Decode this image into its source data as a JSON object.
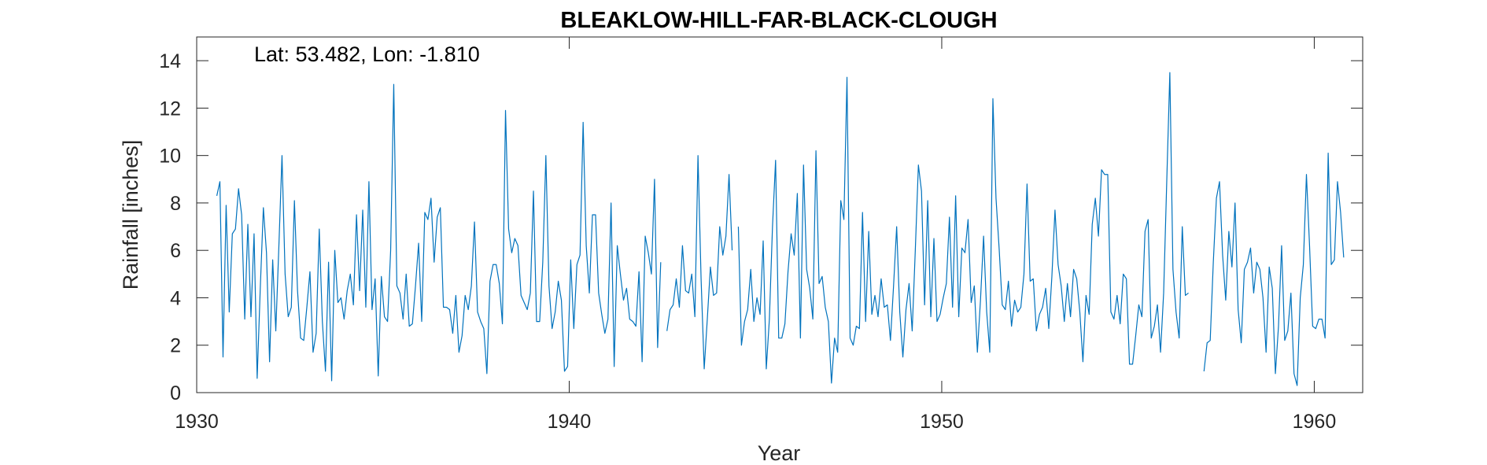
{
  "chart_data": {
    "type": "line",
    "title": "BLEAKLOW-HILL-FAR-BLACK-CLOUGH",
    "annotation": "Lat: 53.482, Lon: -1.810",
    "xlabel": "Year",
    "ylabel": "Rainfall [inches]",
    "xlim": [
      1930,
      1961.3
    ],
    "ylim": [
      0,
      15
    ],
    "xticks": [
      1930,
      1940,
      1950,
      1960
    ],
    "yticks": [
      0,
      2,
      4,
      6,
      8,
      10,
      12,
      14
    ],
    "grid": false,
    "line_color": "#0072BD",
    "series": [
      {
        "start_year": 1930.54,
        "step_years": 0.0833333,
        "values": [
          8.3,
          8.9,
          1.5,
          7.9,
          3.4,
          6.7,
          6.9,
          8.6,
          7.5,
          3.1,
          7.1,
          3.2,
          6.7,
          0.6,
          4.4,
          7.8,
          5.9,
          1.3,
          5.6,
          2.6,
          6.2,
          10.0,
          5.0,
          3.2,
          3.6,
          8.1,
          4.3,
          2.3,
          2.2,
          3.6,
          5.1,
          1.7,
          2.5,
          6.9,
          3.0,
          0.9,
          5.5,
          0.5,
          6.0,
          3.8,
          4.0,
          3.1,
          4.3,
          5.0,
          3.7,
          7.5,
          4.3,
          7.7,
          3.6,
          8.9,
          3.5,
          4.8,
          0.7,
          4.9,
          3.2,
          3.0,
          6.0,
          13.0,
          4.5,
          4.2,
          3.1,
          5.0,
          2.8,
          2.9,
          4.5,
          6.3,
          3.0,
          7.6,
          7.3,
          8.2,
          5.5,
          7.4,
          7.8,
          3.6,
          3.6,
          3.5,
          2.5,
          4.1,
          1.7,
          2.4,
          4.1,
          3.5,
          4.5,
          7.2,
          3.4,
          3.0,
          2.7,
          0.8,
          4.7,
          5.4,
          5.4,
          4.6,
          2.9,
          11.9,
          6.9,
          5.9,
          6.5,
          6.2,
          4.1,
          3.8,
          3.5,
          4.2,
          8.5,
          3.0,
          3.0,
          5.5,
          10.0,
          4.5,
          2.7,
          3.4,
          4.7,
          3.9,
          0.9,
          1.1,
          5.6,
          2.7,
          5.4,
          5.8,
          11.4,
          6.2,
          4.2,
          7.5,
          7.5,
          4.2,
          3.3,
          2.5,
          3.1,
          8.0,
          1.1,
          6.2,
          5.0,
          3.9,
          4.4,
          3.1,
          3.0,
          2.8,
          5.1,
          1.3,
          6.6,
          5.9,
          5.0,
          9.0,
          1.9,
          5.5,
          null,
          2.6,
          3.5,
          3.7,
          4.8,
          3.6,
          6.2,
          4.3,
          4.2,
          5.0,
          3.2,
          10.0,
          4.8,
          1.0,
          3.1,
          5.3,
          4.1,
          4.2,
          7.0,
          5.8,
          6.6,
          9.2,
          6.0,
          null,
          7.0,
          2.0,
          3.0,
          3.5,
          5.2,
          3.0,
          4.0,
          3.3,
          6.4,
          1.0,
          3.1,
          7.0,
          9.8,
          2.3,
          2.3,
          2.9,
          5.1,
          6.7,
          5.8,
          8.4,
          2.3,
          9.6,
          5.2,
          4.4,
          3.1,
          10.2,
          4.6,
          4.9,
          3.6,
          3.0,
          0.4,
          2.3,
          1.7,
          8.1,
          7.3,
          13.3,
          2.3,
          2.0,
          2.8,
          2.7,
          7.6,
          3.0,
          6.8,
          3.3,
          4.1,
          3.2,
          4.8,
          3.6,
          3.7,
          2.2,
          4.5,
          7.0,
          3.4,
          1.5,
          3.5,
          4.6,
          2.6,
          6.0,
          9.6,
          8.5,
          3.7,
          8.1,
          3.2,
          6.5,
          3.0,
          3.3,
          4.0,
          4.6,
          7.4,
          3.6,
          8.3,
          3.2,
          6.1,
          5.9,
          7.3,
          3.8,
          4.5,
          1.7,
          3.9,
          6.6,
          3.4,
          1.7,
          12.4,
          8.2,
          6.1,
          3.7,
          3.5,
          4.7,
          2.8,
          3.9,
          3.4,
          3.6,
          5.0,
          8.8,
          4.7,
          4.8,
          2.6,
          3.3,
          3.6,
          4.4,
          2.7,
          4.9,
          7.7,
          5.4,
          4.5,
          3.0,
          4.6,
          3.2,
          5.2,
          4.8,
          3.4,
          1.3,
          4.1,
          3.3,
          7.1,
          8.2,
          6.6,
          9.4,
          9.2,
          9.2,
          3.4,
          3.1,
          4.1,
          2.9,
          5.0,
          4.8,
          1.2,
          1.2,
          2.4,
          3.7,
          3.2,
          6.8,
          7.3,
          2.3,
          2.8,
          3.7,
          1.7,
          4.2,
          8.9,
          13.5,
          5.2,
          3.4,
          2.3,
          7.0,
          4.1,
          4.2,
          null,
          null,
          null,
          null,
          0.9,
          2.1,
          2.2,
          5.5,
          8.2,
          8.9,
          5.8,
          3.9,
          6.8,
          5.3,
          8.0,
          3.5,
          2.1,
          5.2,
          5.5,
          6.1,
          4.2,
          5.5,
          5.2,
          4.0,
          1.7,
          5.3,
          4.4,
          0.8,
          2.8,
          6.2,
          2.2,
          2.6,
          4.2,
          0.8,
          0.3,
          4.0,
          5.4,
          9.2,
          6.2,
          2.8,
          2.7,
          3.1,
          3.1,
          2.3,
          10.1,
          5.4,
          5.6,
          8.9,
          7.6,
          5.7
        ]
      }
    ]
  }
}
